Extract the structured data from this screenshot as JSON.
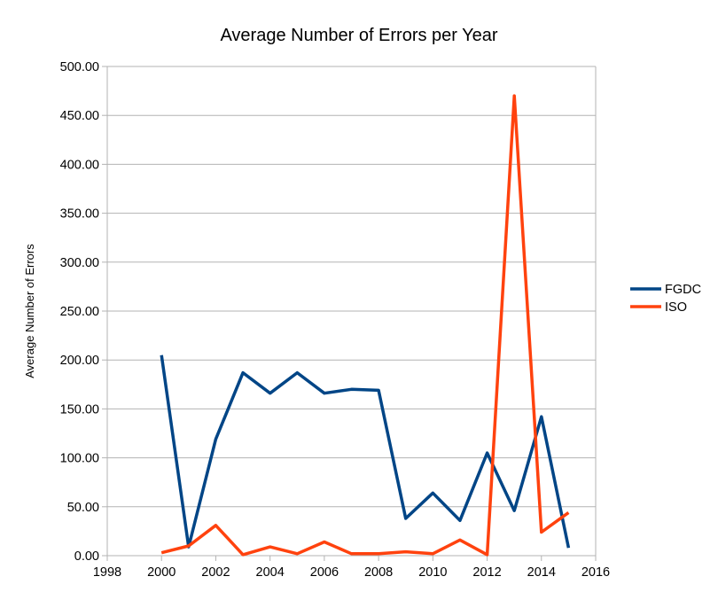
{
  "chart_data": {
    "type": "line",
    "title": "Average Number of Errors per Year",
    "xlabel": "",
    "ylabel": "Average Number of Errors",
    "xlim": [
      1998,
      2016
    ],
    "ylim": [
      0,
      500
    ],
    "x_ticks": [
      "1998",
      "2000",
      "2002",
      "2004",
      "2006",
      "2008",
      "2010",
      "2012",
      "2014",
      "2016"
    ],
    "y_ticks": [
      "0.00",
      "50.00",
      "100.00",
      "150.00",
      "200.00",
      "250.00",
      "300.00",
      "350.00",
      "400.00",
      "450.00",
      "500.00"
    ],
    "grid": "horizontal",
    "legend_position": "right",
    "x": [
      2000,
      2001,
      2002,
      2003,
      2004,
      2005,
      2006,
      2007,
      2008,
      2009,
      2010,
      2011,
      2012,
      2013,
      2014,
      2015
    ],
    "series": [
      {
        "name": "FGDC",
        "color": "#004586",
        "values": [
          205,
          9,
          119,
          187,
          166,
          187,
          166,
          170,
          169,
          38,
          64,
          36,
          105,
          46,
          142,
          8
        ]
      },
      {
        "name": "ISO",
        "color": "#ff420e",
        "values": [
          3,
          10,
          31,
          1,
          9,
          2,
          14,
          2,
          2,
          4,
          2,
          16,
          1,
          470,
          24,
          44
        ]
      }
    ]
  }
}
